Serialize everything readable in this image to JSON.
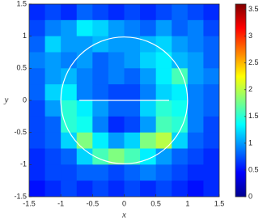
{
  "chart_data": {
    "type": "heatmap",
    "xlabel": "x",
    "ylabel": "y",
    "colormap": "jet",
    "x": [
      -1.375,
      -1.125,
      -0.875,
      -0.625,
      -0.375,
      -0.125,
      0.125,
      0.375,
      0.625,
      0.875,
      1.125,
      1.375
    ],
    "y": [
      1.375,
      1.125,
      0.875,
      0.625,
      0.375,
      0.125,
      -0.125,
      -0.375,
      -0.625,
      -0.875,
      -1.125,
      -1.375
    ],
    "z": [
      [
        0.6,
        0.7,
        0.6,
        0.8,
        0.7,
        0.6,
        0.7,
        0.6,
        0.7,
        0.8,
        0.7,
        0.6
      ],
      [
        0.7,
        0.9,
        1.0,
        1.3,
        1.2,
        1.0,
        0.9,
        0.8,
        1.0,
        0.8,
        0.9,
        0.7
      ],
      [
        0.8,
        1.2,
        1.0,
        1.0,
        1.1,
        1.0,
        1.0,
        1.1,
        1.2,
        1.0,
        0.9,
        0.8
      ],
      [
        0.9,
        1.0,
        0.9,
        1.0,
        0.8,
        0.9,
        1.0,
        1.2,
        1.3,
        1.1,
        1.0,
        0.8
      ],
      [
        0.8,
        1.0,
        1.1,
        0.9,
        0.8,
        0.9,
        0.8,
        1.0,
        1.3,
        1.6,
        1.0,
        0.9
      ],
      [
        0.8,
        1.2,
        1.3,
        0.9,
        0.8,
        0.7,
        0.7,
        0.9,
        1.2,
        1.3,
        0.9,
        0.8
      ],
      [
        0.7,
        1.0,
        1.5,
        1.3,
        1.0,
        0.8,
        0.8,
        1.2,
        1.5,
        1.4,
        0.9,
        0.8
      ],
      [
        0.7,
        0.8,
        1.5,
        1.4,
        0.9,
        0.6,
        0.7,
        1.0,
        1.6,
        1.5,
        0.9,
        0.7
      ],
      [
        0.7,
        0.8,
        1.2,
        1.8,
        1.3,
        1.0,
        1.2,
        1.8,
        2.0,
        1.2,
        0.8,
        0.7
      ],
      [
        0.6,
        0.7,
        0.8,
        1.2,
        1.6,
        1.8,
        1.6,
        1.3,
        1.0,
        0.8,
        0.7,
        0.6
      ],
      [
        0.6,
        0.7,
        0.7,
        0.8,
        0.8,
        0.7,
        0.8,
        0.9,
        0.8,
        0.7,
        0.6,
        0.6
      ],
      [
        0.5,
        0.6,
        0.7,
        0.6,
        0.7,
        0.6,
        0.7,
        0.6,
        0.7,
        0.6,
        0.5,
        0.6
      ]
    ],
    "xlim": [
      -1.5,
      1.5
    ],
    "ylim": [
      -1.5,
      1.5
    ],
    "xticks": [
      -1.5,
      -1,
      -0.5,
      0,
      0.5,
      1,
      1.5
    ],
    "yticks": [
      -1.5,
      -1,
      -0.5,
      0,
      0.5,
      1,
      1.5
    ],
    "clim": [
      0,
      3.6
    ],
    "cticks": [
      0,
      0.5,
      1,
      1.5,
      2,
      2.5,
      3,
      3.5
    ]
  }
}
